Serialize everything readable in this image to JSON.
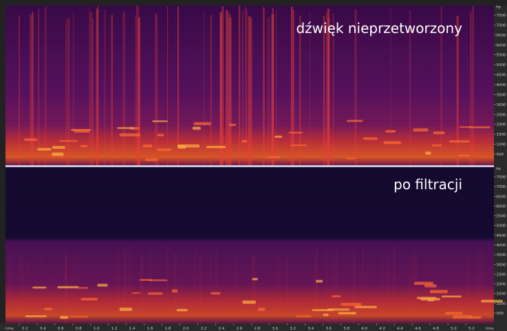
{
  "top_panel": {
    "label": "dźwięk nieprzetworzony"
  },
  "bottom_panel": {
    "label": "po filtracji"
  },
  "frequency_axis": {
    "unit": "Hz",
    "ticks": [
      "7500",
      "7000",
      "6500",
      "6000",
      "5500",
      "5000",
      "4500",
      "4000",
      "3500",
      "3000",
      "2500",
      "2000",
      "1500",
      "1000",
      "500"
    ]
  },
  "time_axis": {
    "unit": "hms",
    "ticks": [
      "0.2",
      "0.4",
      "0.6",
      "0.8",
      "1.0",
      "1.2",
      "1.4",
      "1.6",
      "1.8",
      "2.0",
      "2.2",
      "2.4",
      "2.6",
      "2.8",
      "3.0",
      "3.2",
      "3.4",
      "3.6",
      "3.8",
      "4.0",
      "4.2",
      "4.4",
      "4.6",
      "4.8",
      "5.0",
      "5.2"
    ]
  }
}
